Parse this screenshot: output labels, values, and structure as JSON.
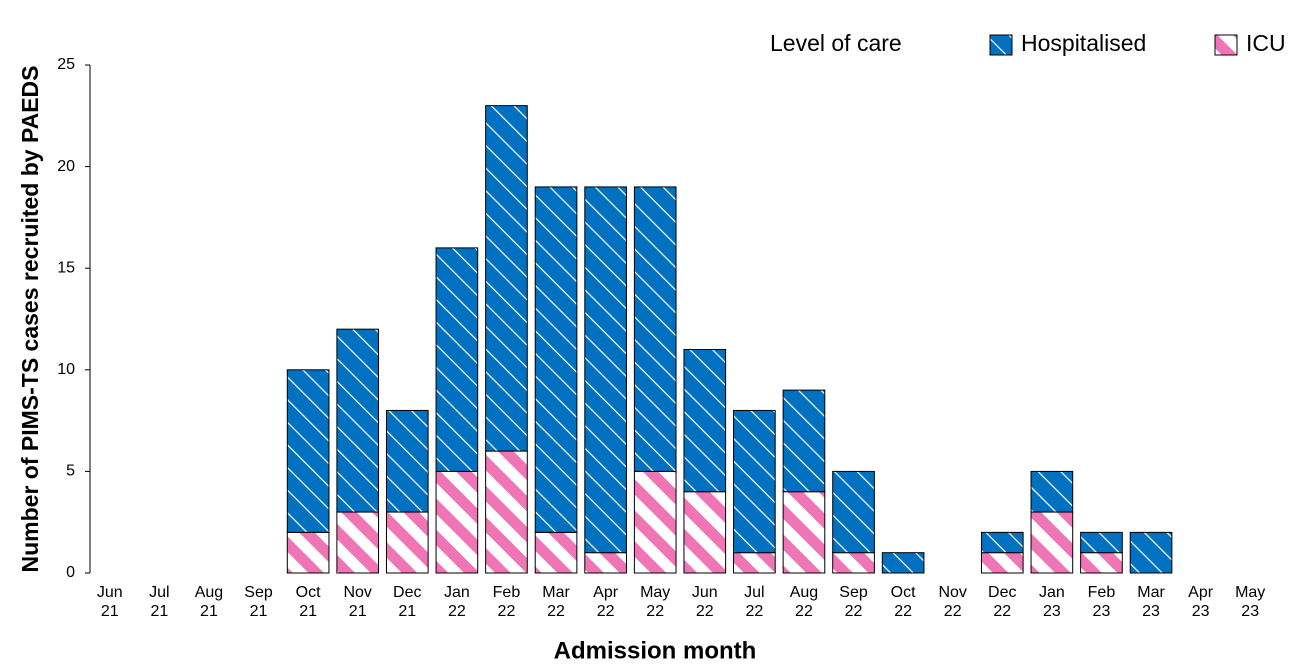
{
  "chart_data": {
    "type": "bar",
    "stacked": true,
    "y_label": "Number of PIMS-TS cases recruited by PAEDS",
    "x_label": "Admission month",
    "legend_title": "Level of care",
    "categories": [
      "Jun 21",
      "Jul 21",
      "Aug 21",
      "Sep 21",
      "Oct 21",
      "Nov 21",
      "Dec 21",
      "Jan 22",
      "Feb 22",
      "Mar 22",
      "Apr 22",
      "May 22",
      "Jun 22",
      "Jul 22",
      "Aug 22",
      "Sep 22",
      "Oct 22",
      "Nov 22",
      "Dec 22",
      "Jan 23",
      "Feb 23",
      "Mar 23",
      "Apr 23",
      "May 23"
    ],
    "series": [
      {
        "name": "Hospitalised",
        "color": "#0070c0",
        "values": [
          0,
          0,
          0,
          0,
          8,
          9,
          5,
          11,
          17,
          17,
          18,
          14,
          7,
          7,
          5,
          4,
          1,
          0,
          1,
          2,
          1,
          2,
          0,
          0
        ]
      },
      {
        "name": "ICU",
        "color": "#f075b4",
        "values": [
          0,
          0,
          0,
          0,
          2,
          3,
          3,
          5,
          6,
          2,
          1,
          5,
          4,
          1,
          4,
          1,
          0,
          0,
          1,
          3,
          1,
          0,
          0,
          0
        ]
      }
    ],
    "ylim": [
      0,
      25
    ],
    "yticks": [
      0,
      5,
      10,
      15,
      20,
      25
    ],
    "grid": false,
    "legend": "top-right"
  }
}
